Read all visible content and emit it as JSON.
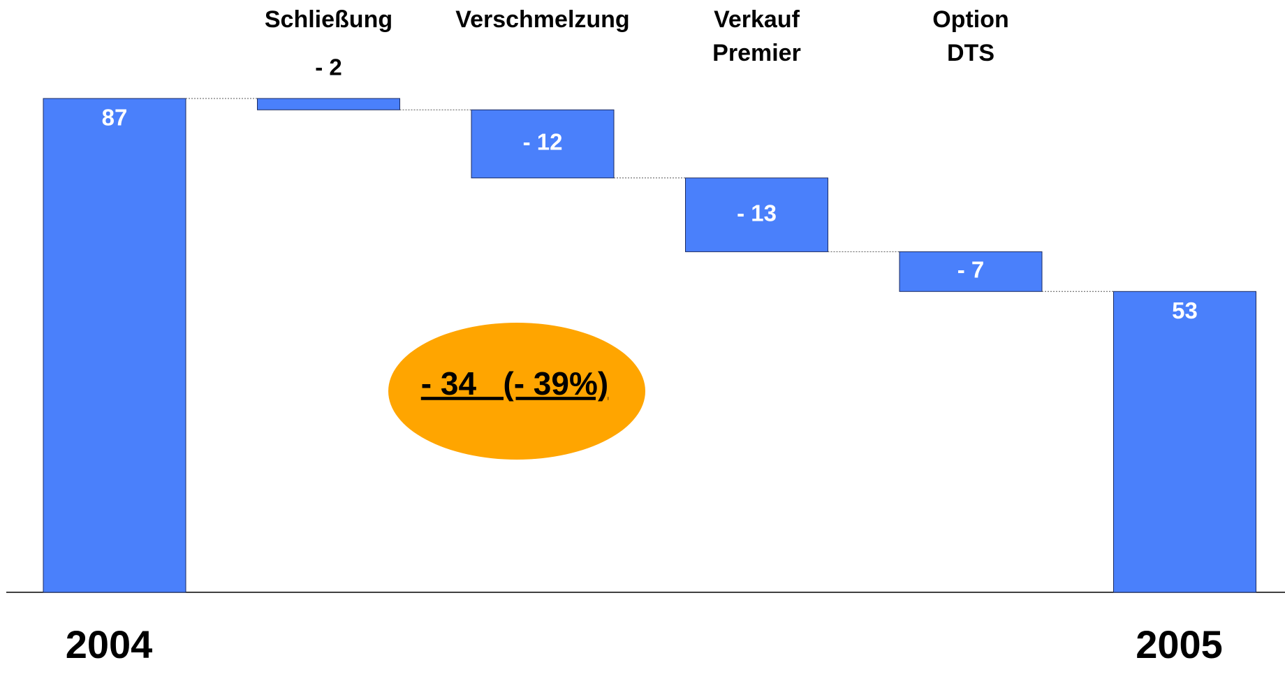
{
  "chart_data": {
    "type": "waterfall",
    "categories": [
      "2004",
      "Schließung",
      "Verschmelzung",
      "Verkauf Premier",
      "Option DTS",
      "2005"
    ],
    "values": [
      87,
      -2,
      -12,
      -13,
      -7,
      53
    ],
    "value_labels": [
      "87",
      "- 2",
      "- 12",
      "- 13",
      "- 7",
      "53"
    ],
    "totals": [
      true,
      false,
      false,
      false,
      false,
      true
    ],
    "color": "#4a80fb",
    "annotation": "- 34   (- 39%)",
    "annotation_color": "#ffa500"
  }
}
